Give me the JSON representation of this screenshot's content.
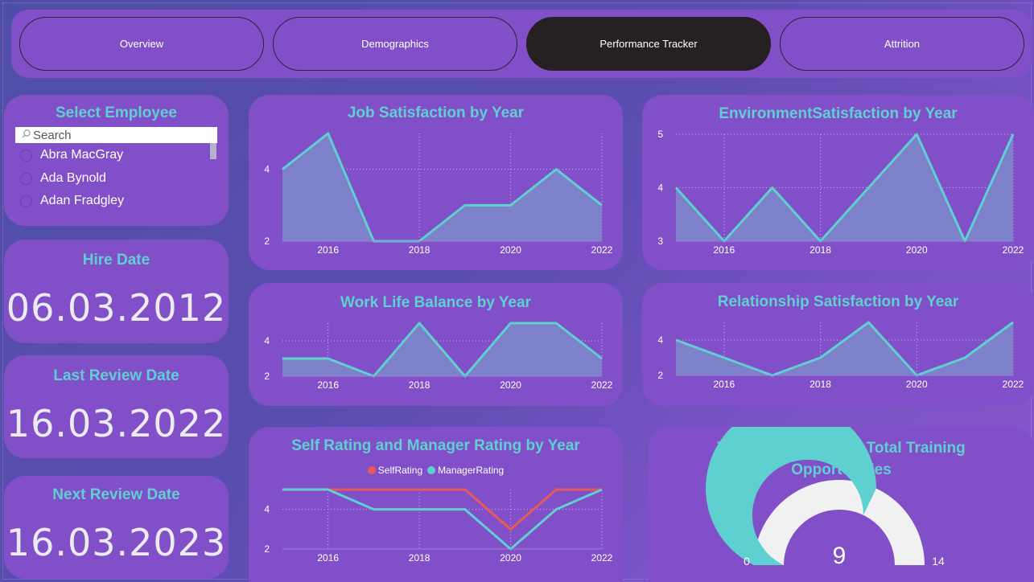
{
  "nav": {
    "tabs": [
      {
        "label": "Overview"
      },
      {
        "label": "Demographics"
      },
      {
        "label": "Performance Tracker"
      },
      {
        "label": "Attrition"
      }
    ],
    "active_index": 2
  },
  "employee_select": {
    "title": "Select Employee",
    "search_placeholder": "Search",
    "items": [
      "Abra MacGray",
      "Ada Bynold",
      "Adan Fradgley"
    ]
  },
  "hire_date": {
    "title": "Hire Date",
    "value": "06.03.2012"
  },
  "last_review": {
    "title": "Last Review Date",
    "value": "16.03.2022"
  },
  "next_review": {
    "title": "Next Review Date",
    "value": "16.03.2023"
  },
  "colors": {
    "accent": "#5fd0d0",
    "card": "#8150c9",
    "area_fill": "#7b86c9",
    "self_rating": "#e65a5a",
    "manager_rating": "#5fd0d0",
    "gauge_bg": "#f1f1f1"
  },
  "chart_data": [
    {
      "id": "job",
      "type": "area",
      "title": "Job Satisfaction by Year",
      "x": [
        2015,
        2016,
        2017,
        2018,
        2019,
        2020,
        2021,
        2022
      ],
      "series": [
        {
          "values": [
            4,
            5,
            2,
            2,
            3,
            3,
            4,
            3
          ]
        }
      ],
      "xticks": [
        "2016",
        "2018",
        "2020",
        "2022"
      ],
      "yticks": [
        "2",
        "4"
      ],
      "ylim": [
        2,
        5
      ],
      "grid": true
    },
    {
      "id": "env",
      "type": "area",
      "title": "EnvironmentSatisfaction by Year",
      "x": [
        2015,
        2016,
        2017,
        2018,
        2019,
        2020,
        2021,
        2022
      ],
      "series": [
        {
          "values": [
            4,
            3,
            4,
            3,
            4,
            5,
            3,
            5
          ]
        }
      ],
      "xticks": [
        "2016",
        "2018",
        "2020",
        "2022"
      ],
      "yticks": [
        "3",
        "4",
        "5"
      ],
      "ylim": [
        3,
        5
      ],
      "grid": true
    },
    {
      "id": "wlb",
      "type": "area",
      "title": "Work Life Balance by Year",
      "x": [
        2015,
        2016,
        2017,
        2018,
        2019,
        2020,
        2021,
        2022
      ],
      "series": [
        {
          "values": [
            3,
            3,
            2,
            5,
            2,
            5,
            5,
            3
          ]
        }
      ],
      "xticks": [
        "2016",
        "2018",
        "2020",
        "2022"
      ],
      "yticks": [
        "2",
        "4"
      ],
      "ylim": [
        2,
        5
      ],
      "grid": true
    },
    {
      "id": "rel",
      "type": "area",
      "title": "Relationship Satisfaction by Year",
      "x": [
        2015,
        2016,
        2017,
        2018,
        2019,
        2020,
        2021,
        2022
      ],
      "series": [
        {
          "values": [
            4,
            3,
            2,
            3,
            5,
            2,
            3,
            5
          ]
        }
      ],
      "xticks": [
        "2016",
        "2018",
        "2020",
        "2022"
      ],
      "yticks": [
        "2",
        "4"
      ],
      "ylim": [
        2,
        5
      ],
      "grid": true
    },
    {
      "id": "rating",
      "type": "line",
      "title": "Self Rating and Manager Rating by Year",
      "x": [
        2015,
        2016,
        2017,
        2018,
        2019,
        2020,
        2021,
        2022
      ],
      "series": [
        {
          "name": "SelfRating",
          "values": [
            5,
            5,
            5,
            5,
            5,
            3,
            5,
            5
          ]
        },
        {
          "name": "ManagerRating",
          "values": [
            5,
            5,
            4,
            4,
            4,
            2,
            4,
            5
          ]
        }
      ],
      "xticks": [
        "2016",
        "2018",
        "2020",
        "2022"
      ],
      "yticks": [
        "2",
        "4"
      ],
      "ylim": [
        2,
        5
      ],
      "grid": true,
      "legend": "top-center"
    },
    {
      "id": "training",
      "type": "gauge",
      "title": "Training Taken from Total Training Opportunities",
      "value": 9,
      "min": 0,
      "max": 14,
      "value_label": "9",
      "min_label": "0",
      "max_label": "14"
    }
  ]
}
